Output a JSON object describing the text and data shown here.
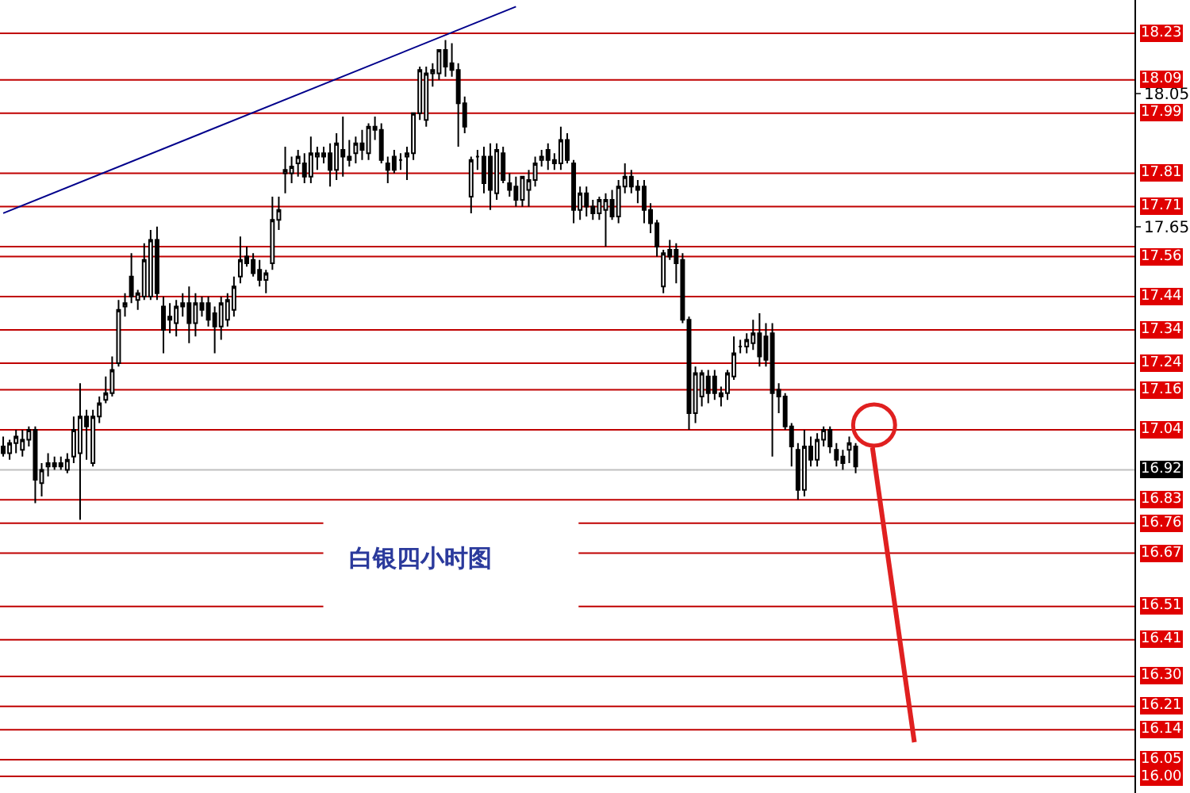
{
  "chart_data": {
    "type": "candlestick",
    "categories": [
      null,
      null,
      null,
      null,
      null,
      null,
      null,
      null,
      null,
      null,
      null,
      null,
      null,
      null,
      null,
      null,
      null,
      null,
      null,
      null,
      null,
      null,
      null,
      null,
      null,
      null,
      null,
      null,
      null,
      null,
      null,
      null,
      null,
      null,
      null,
      null,
      null,
      null,
      null,
      null,
      null,
      null,
      null,
      null,
      null,
      null,
      null,
      null,
      null,
      null,
      null,
      null,
      null,
      null,
      null,
      null,
      null,
      null,
      null,
      null,
      null,
      null,
      null,
      null,
      null,
      null,
      null,
      null,
      null,
      null,
      null,
      null,
      null,
      null,
      null,
      null,
      null,
      null,
      null,
      null,
      null,
      null,
      null,
      null,
      null,
      null,
      null,
      null,
      null,
      null,
      null,
      null,
      null,
      null,
      null,
      null,
      null,
      null,
      null,
      null,
      null,
      null,
      null,
      null,
      null,
      null,
      null,
      null,
      null,
      null,
      null,
      null,
      null,
      null,
      null,
      null,
      null,
      null,
      null,
      null,
      null,
      null,
      null,
      null,
      null,
      null,
      null,
      null,
      null,
      null,
      null,
      null,
      null,
      null,
      null,
      null,
      null,
      null,
      null,
      null,
      null,
      null,
      null,
      null,
      null,
      null,
      null,
      null,
      null,
      null,
      null,
      null,
      null,
      null,
      null,
      null,
      null,
      null,
      null,
      null,
      null,
      null,
      null,
      null,
      null,
      null,
      null,
      null,
      null,
      null,
      null,
      null,
      null,
      null,
      null,
      null,
      null
    ],
    "ohlc": [
      [
        16.99,
        17.02,
        16.96,
        16.97
      ],
      [
        16.97,
        17.01,
        16.95,
        17.0
      ],
      [
        17.0,
        17.04,
        16.97,
        17.02
      ],
      [
        16.98,
        17.04,
        16.96,
        17.01
      ],
      [
        17.01,
        17.05,
        16.99,
        17.04
      ],
      [
        17.04,
        17.05,
        16.82,
        16.89
      ],
      [
        16.88,
        16.94,
        16.84,
        16.92
      ],
      [
        16.93,
        16.97,
        16.9,
        16.94
      ],
      [
        16.94,
        16.96,
        16.92,
        16.93
      ],
      [
        16.94,
        16.96,
        16.92,
        16.93
      ],
      [
        16.92,
        16.97,
        16.91,
        16.95
      ],
      [
        16.96,
        17.08,
        16.94,
        17.04
      ],
      [
        16.97,
        17.18,
        16.77,
        17.08
      ],
      [
        17.08,
        17.1,
        16.95,
        17.05
      ],
      [
        16.94,
        17.1,
        16.93,
        17.08
      ],
      [
        17.08,
        17.14,
        17.06,
        17.12
      ],
      [
        17.13,
        17.2,
        17.12,
        17.15
      ],
      [
        17.15,
        17.26,
        17.14,
        17.22
      ],
      [
        17.24,
        17.43,
        17.23,
        17.4
      ],
      [
        17.41,
        17.45,
        17.38,
        17.42
      ],
      [
        17.5,
        17.57,
        17.42,
        17.44
      ],
      [
        17.43,
        17.46,
        17.4,
        17.45
      ],
      [
        17.44,
        17.6,
        17.43,
        17.55
      ],
      [
        17.44,
        17.64,
        17.43,
        17.61
      ],
      [
        17.61,
        17.65,
        17.43,
        17.45
      ],
      [
        17.41,
        17.44,
        17.27,
        17.34
      ],
      [
        17.38,
        17.42,
        17.33,
        17.37
      ],
      [
        17.36,
        17.43,
        17.32,
        17.41
      ],
      [
        17.42,
        17.45,
        17.38,
        17.41
      ],
      [
        17.42,
        17.47,
        17.3,
        17.36
      ],
      [
        17.36,
        17.45,
        17.32,
        17.42
      ],
      [
        17.42,
        17.44,
        17.38,
        17.4
      ],
      [
        17.42,
        17.44,
        17.35,
        17.37
      ],
      [
        17.39,
        17.41,
        17.27,
        17.35
      ],
      [
        17.35,
        17.44,
        17.31,
        17.42
      ],
      [
        17.37,
        17.45,
        17.35,
        17.43
      ],
      [
        17.4,
        17.5,
        17.38,
        17.47
      ],
      [
        17.5,
        17.62,
        17.48,
        17.55
      ],
      [
        17.56,
        17.59,
        17.53,
        17.54
      ],
      [
        17.55,
        17.57,
        17.5,
        17.51
      ],
      [
        17.52,
        17.55,
        17.47,
        17.49
      ],
      [
        17.49,
        17.52,
        17.45,
        17.51
      ],
      [
        17.54,
        17.74,
        17.52,
        17.67
      ],
      [
        17.67,
        17.74,
        17.64,
        17.7
      ],
      [
        17.81,
        17.89,
        17.75,
        17.82
      ],
      [
        17.81,
        17.86,
        17.78,
        17.83
      ],
      [
        17.84,
        17.88,
        17.8,
        17.86
      ],
      [
        17.84,
        17.87,
        17.78,
        17.8
      ],
      [
        17.8,
        17.92,
        17.78,
        17.87
      ],
      [
        17.86,
        17.89,
        17.82,
        17.87
      ],
      [
        17.87,
        17.89,
        17.84,
        17.86
      ],
      [
        17.87,
        17.9,
        17.77,
        17.82
      ],
      [
        17.82,
        17.93,
        17.79,
        17.9
      ],
      [
        17.88,
        17.98,
        17.8,
        17.86
      ],
      [
        17.86,
        17.91,
        17.83,
        17.85
      ],
      [
        17.87,
        17.92,
        17.84,
        17.9
      ],
      [
        17.9,
        17.94,
        17.85,
        17.88
      ],
      [
        17.87,
        17.96,
        17.85,
        17.95
      ],
      [
        17.94,
        17.98,
        17.91,
        17.95
      ],
      [
        17.94,
        17.96,
        17.84,
        17.85
      ],
      [
        17.84,
        17.86,
        17.78,
        17.82
      ],
      [
        17.86,
        17.88,
        17.81,
        17.82
      ],
      [
        17.85,
        17.87,
        17.82,
        17.85
      ],
      [
        17.86,
        17.89,
        17.79,
        17.87
      ],
      [
        17.87,
        17.99,
        17.85,
        17.99
      ],
      [
        17.99,
        18.13,
        17.97,
        18.12
      ],
      [
        17.97,
        18.13,
        17.95,
        18.11
      ],
      [
        18.11,
        18.14,
        18.07,
        18.12
      ],
      [
        18.11,
        18.18,
        18.09,
        18.18
      ],
      [
        18.18,
        18.21,
        18.1,
        18.13
      ],
      [
        18.14,
        18.2,
        18.1,
        18.12
      ],
      [
        18.12,
        18.14,
        17.89,
        18.02
      ],
      [
        18.02,
        18.04,
        17.93,
        17.95
      ],
      [
        17.74,
        17.86,
        17.69,
        17.85
      ],
      [
        17.86,
        17.88,
        17.82,
        17.86
      ],
      [
        17.86,
        17.89,
        17.75,
        17.78
      ],
      [
        17.86,
        17.9,
        17.7,
        17.76
      ],
      [
        17.75,
        17.9,
        17.73,
        17.88
      ],
      [
        17.87,
        17.89,
        17.78,
        17.79
      ],
      [
        17.78,
        17.81,
        17.74,
        17.76
      ],
      [
        17.77,
        17.8,
        17.71,
        17.73
      ],
      [
        17.73,
        17.8,
        17.71,
        17.8
      ],
      [
        17.76,
        17.82,
        17.71,
        17.79
      ],
      [
        17.79,
        17.86,
        17.77,
        17.84
      ],
      [
        17.85,
        17.88,
        17.83,
        17.86
      ],
      [
        17.88,
        17.9,
        17.82,
        17.85
      ],
      [
        17.85,
        17.87,
        17.82,
        17.84
      ],
      [
        17.84,
        17.95,
        17.82,
        17.91
      ],
      [
        17.91,
        17.93,
        17.84,
        17.85
      ],
      [
        17.84,
        17.85,
        17.66,
        17.7
      ],
      [
        17.7,
        17.77,
        17.67,
        17.75
      ],
      [
        17.75,
        17.77,
        17.68,
        17.71
      ],
      [
        17.71,
        17.73,
        17.67,
        17.69
      ],
      [
        17.69,
        17.74,
        17.67,
        17.73
      ],
      [
        17.7,
        17.75,
        17.59,
        17.73
      ],
      [
        17.73,
        17.76,
        17.67,
        17.68
      ],
      [
        17.68,
        17.79,
        17.66,
        17.77
      ],
      [
        17.77,
        17.84,
        17.75,
        17.8
      ],
      [
        17.8,
        17.82,
        17.75,
        17.77
      ],
      [
        17.77,
        17.79,
        17.72,
        17.76
      ],
      [
        17.77,
        17.79,
        17.66,
        17.7
      ],
      [
        17.7,
        17.72,
        17.63,
        17.66
      ],
      [
        17.66,
        17.67,
        17.56,
        17.59
      ],
      [
        17.47,
        17.58,
        17.45,
        17.57
      ],
      [
        17.58,
        17.61,
        17.55,
        17.56
      ],
      [
        17.58,
        17.6,
        17.48,
        17.54
      ],
      [
        17.55,
        17.57,
        17.36,
        17.37
      ],
      [
        17.37,
        17.38,
        17.04,
        17.09
      ],
      [
        17.09,
        17.23,
        17.06,
        17.21
      ],
      [
        17.14,
        17.22,
        17.11,
        17.21
      ],
      [
        17.2,
        17.22,
        17.12,
        17.15
      ],
      [
        17.2,
        17.22,
        17.13,
        17.15
      ],
      [
        17.15,
        17.17,
        17.11,
        17.14
      ],
      [
        17.15,
        17.22,
        17.13,
        17.21
      ],
      [
        17.2,
        17.32,
        17.19,
        17.27
      ],
      [
        17.29,
        17.31,
        17.27,
        17.29
      ],
      [
        17.29,
        17.33,
        17.27,
        17.31
      ],
      [
        17.3,
        17.37,
        17.28,
        17.33
      ],
      [
        17.33,
        17.39,
        17.23,
        17.26
      ],
      [
        17.32,
        17.36,
        17.23,
        17.25
      ],
      [
        17.33,
        17.36,
        16.96,
        17.15
      ],
      [
        17.16,
        17.18,
        17.09,
        17.14
      ],
      [
        17.14,
        17.15,
        17.04,
        17.05
      ],
      [
        17.05,
        17.06,
        16.93,
        16.99
      ],
      [
        16.98,
        17.0,
        16.83,
        16.86
      ],
      [
        16.86,
        17.04,
        16.84,
        16.99
      ],
      [
        16.99,
        17.02,
        16.93,
        16.95
      ],
      [
        16.95,
        17.03,
        16.93,
        17.01
      ],
      [
        17.01,
        17.05,
        16.99,
        17.04
      ],
      [
        17.04,
        17.05,
        16.97,
        16.99
      ],
      [
        16.98,
        17.0,
        16.93,
        16.95
      ],
      [
        16.96,
        16.98,
        16.92,
        16.94
      ],
      [
        16.98,
        17.02,
        16.94,
        17.0
      ],
      [
        16.99,
        17.0,
        16.91,
        16.93
      ],
      null,
      null,
      null,
      null,
      null,
      null,
      null,
      null,
      null,
      null,
      null,
      null,
      null,
      null,
      null,
      null,
      null,
      null,
      null,
      null,
      null,
      null,
      null,
      null,
      null,
      null,
      null,
      null,
      null,
      null,
      null,
      null,
      null,
      null,
      null,
      null,
      null,
      null,
      null,
      null,
      null,
      null,
      null
    ],
    "series": [
      {
        "type": "line",
        "values": [
          17.69,
          null,
          null,
          null,
          null,
          null,
          null,
          null,
          null,
          null,
          null,
          null,
          null,
          null,
          null,
          null,
          null,
          null,
          null,
          null,
          null,
          null,
          null,
          null,
          null,
          null,
          null,
          null,
          null,
          null,
          null,
          null,
          null,
          null,
          null,
          null,
          null,
          null,
          null,
          null,
          null,
          null,
          null,
          null,
          null,
          null,
          null,
          null,
          null,
          null,
          null,
          null,
          null,
          null,
          null,
          null,
          null,
          null,
          null,
          null,
          null,
          null,
          null,
          null,
          null,
          null,
          null,
          null,
          null,
          null,
          null,
          null,
          null,
          null,
          null,
          null,
          null,
          null,
          null,
          null,
          18.31,
          null,
          null,
          null,
          null,
          null,
          null,
          null,
          null,
          null,
          null,
          null,
          null,
          null,
          null,
          null,
          null,
          null,
          null,
          null,
          null,
          null,
          null,
          null,
          null,
          null,
          null,
          null,
          null,
          null,
          null,
          null,
          null,
          null,
          null,
          null,
          null,
          null,
          null,
          null,
          null,
          null,
          null,
          null,
          null,
          null,
          null,
          null,
          null,
          null,
          null,
          null,
          null,
          null,
          null,
          null,
          null,
          null,
          null,
          null,
          null,
          null,
          null,
          null,
          null,
          null,
          null,
          null,
          null,
          null,
          null,
          null,
          null,
          null,
          null,
          null,
          null,
          null,
          null,
          null,
          null,
          null,
          null,
          null,
          null,
          null,
          null,
          null,
          null,
          null,
          null,
          null,
          null,
          null,
          null,
          null,
          null
        ],
        "color": "#00008b"
      }
    ],
    "ylim": [
      15.95,
      18.33
    ],
    "yticks": [
      18.05,
      17.65
    ],
    "tick_labels": "y",
    "grid": false,
    "ref_lines": [
      {
        "axis": "y",
        "value": 18.23,
        "label": "18.23",
        "color": "#c00000"
      },
      {
        "axis": "y",
        "value": 18.09,
        "label": "18.09",
        "color": "#c00000"
      },
      {
        "axis": "y",
        "value": 17.99,
        "label": "17.99",
        "color": "#c00000"
      },
      {
        "axis": "y",
        "value": 17.81,
        "label": "17.81",
        "color": "#c00000"
      },
      {
        "axis": "y",
        "value": 17.71,
        "label": "17.71",
        "color": "#c00000"
      },
      {
        "axis": "y",
        "value": 17.59,
        "label": null,
        "color": "#c00000"
      },
      {
        "axis": "y",
        "value": 17.56,
        "label": "17.56",
        "color": "#c00000"
      },
      {
        "axis": "y",
        "value": 17.44,
        "label": "17.44",
        "color": "#c00000"
      },
      {
        "axis": "y",
        "value": 17.34,
        "label": "17.34",
        "color": "#c00000"
      },
      {
        "axis": "y",
        "value": 17.24,
        "label": "17.24",
        "color": "#c00000"
      },
      {
        "axis": "y",
        "value": 17.16,
        "label": "17.16",
        "color": "#c00000"
      },
      {
        "axis": "y",
        "value": 17.04,
        "label": "17.04",
        "color": "#c00000"
      },
      {
        "axis": "y",
        "value": 16.92,
        "label": "16.92",
        "color": "#c0c0c0"
      },
      {
        "axis": "y",
        "value": 16.83,
        "label": "16.83",
        "color": "#c00000"
      },
      {
        "axis": "y",
        "value": 16.76,
        "label": "16.76",
        "color": "#c00000"
      },
      {
        "axis": "y",
        "value": 16.67,
        "label": "16.67",
        "color": "#c00000"
      },
      {
        "axis": "y",
        "value": 16.51,
        "label": "16.51",
        "color": "#c00000"
      },
      {
        "axis": "y",
        "value": 16.41,
        "label": "16.41",
        "color": "#c00000"
      },
      {
        "axis": "y",
        "value": 16.3,
        "label": "16.30",
        "color": "#c00000"
      },
      {
        "axis": "y",
        "value": 16.21,
        "label": "16.21",
        "color": "#c00000"
      },
      {
        "axis": "y",
        "value": 16.14,
        "label": "16.14",
        "color": "#c00000"
      },
      {
        "axis": "y",
        "value": 16.05,
        "label": "16.05",
        "color": "#c00000"
      },
      {
        "axis": "y",
        "value": 16.0,
        "label": "16.00",
        "color": "#c00000"
      }
    ],
    "annotations": [
      "白银四小时图"
    ]
  }
}
